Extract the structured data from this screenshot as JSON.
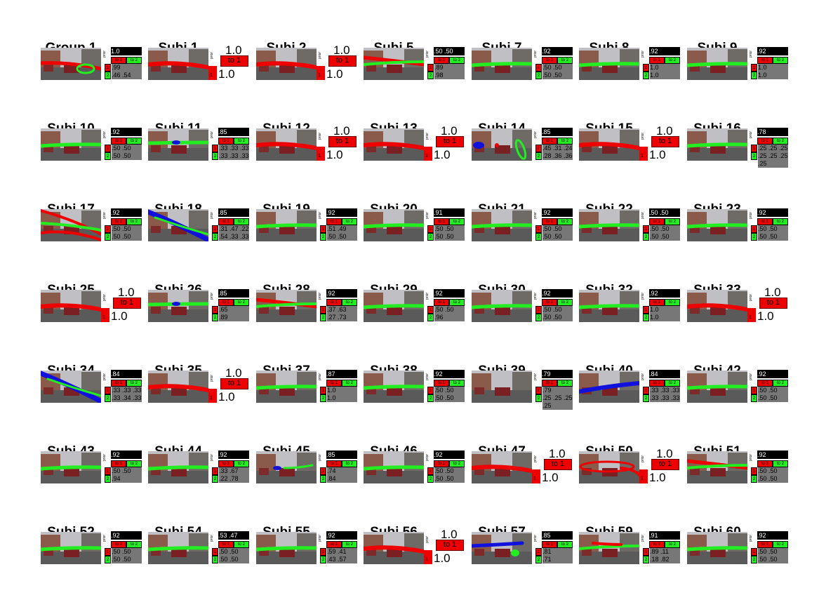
{
  "labels": {
    "prior": "prior",
    "to1": "to 1",
    "to2": "to 2",
    "one_big": "1.0",
    "c1": "1",
    "c2": "2"
  },
  "colors": {
    "red": "#ee0000",
    "green": "#22ee22",
    "blue": "#1111dd"
  },
  "panels": [
    {
      "title": "Group 1",
      "type": "g2",
      "prior": "1.0",
      "rows": [
        ".99",
        ".46 .54"
      ],
      "traj": "green-ellipse-red"
    },
    {
      "title": "Subj 1",
      "type": "big",
      "traj": "red"
    },
    {
      "title": "Subj 2",
      "type": "big",
      "traj": "red"
    },
    {
      "title": "Subj 5",
      "type": "g2",
      "prior": ".50 .50",
      "rows": [
        ".89",
        ".98"
      ],
      "traj": "red-green"
    },
    {
      "title": "Subj 7",
      "type": "g2",
      "prior": ".92",
      "rows": [
        ".50 .50",
        ".50 .50"
      ],
      "traj": "green"
    },
    {
      "title": "Subj 8",
      "type": "g2",
      "prior": ".92",
      "rows": [
        "1.0",
        "1.0"
      ],
      "traj": "green"
    },
    {
      "title": "Subj 9",
      "type": "g2",
      "prior": ".92",
      "rows": [
        "1.0",
        "1.0"
      ],
      "traj": "green"
    },
    {
      "title": "Subj 10",
      "type": "g2",
      "prior": ".92",
      "rows": [
        ".50 .50",
        ".50 .50"
      ],
      "traj": "green"
    },
    {
      "title": "Subj 11",
      "type": "g3",
      "prior": ".85",
      "rows": [
        ".33 .33 .33",
        ".33 .33 .33",
        ".33 .33 .33"
      ],
      "traj": "green-blue"
    },
    {
      "title": "Subj 12",
      "type": "big",
      "traj": "red"
    },
    {
      "title": "Subj 13",
      "type": "big",
      "traj": "red"
    },
    {
      "title": "Subj 14",
      "type": "g3",
      "prior": ".85",
      "rows": [
        ".45 .31 .24",
        ".28 .36 .36",
        ".33 .26 .41"
      ],
      "traj": "green-blue-red"
    },
    {
      "title": "Subj 15",
      "type": "big",
      "traj": "red"
    },
    {
      "title": "Subj 16",
      "type": "g5",
      "prior": ".78",
      "rows": [
        ".25 .25 .25 .25",
        ".25 .25 .25 .25",
        ".25 .25 .25 .25"
      ],
      "traj": "green"
    },
    {
      "title": "Subj 17",
      "type": "g2",
      "prior": ".92",
      "rows": [
        ".50 .50",
        ".50 .50"
      ],
      "traj": "red-green-wide"
    },
    {
      "title": "Subj 18",
      "type": "g3",
      "prior": ".85",
      "rows": [
        ".31 .47 .22",
        ".54 .33 .33"
      ],
      "traj": "blue-wide"
    },
    {
      "title": "Subj 19",
      "type": "g2",
      "prior": ".92",
      "rows": [
        ".51 .49",
        ".50 .50"
      ],
      "traj": "green"
    },
    {
      "title": "Subj 20",
      "type": "g2",
      "prior": ".91",
      "rows": [
        ".50 .50",
        ".50 .50"
      ],
      "traj": "green"
    },
    {
      "title": "Subj 21",
      "type": "g2",
      "prior": ".92",
      "rows": [
        ".50 .50",
        ".50 .50"
      ],
      "traj": "green"
    },
    {
      "title": "Subj 22",
      "type": "g2",
      "prior": ".50 .50",
      "rows": [
        ".50 .50",
        ".50 .50"
      ],
      "traj": "green"
    },
    {
      "title": "Subj 23",
      "type": "g2",
      "prior": ".92",
      "rows": [
        ".50 .50",
        ".50 .50"
      ],
      "traj": "green"
    },
    {
      "title": "Subj 25",
      "type": "big",
      "traj": "red"
    },
    {
      "title": "Subj 26",
      "type": "g3",
      "prior": ".85",
      "rows": [
        ".65",
        ".89",
        ".33 .58"
      ],
      "traj": "green-blue"
    },
    {
      "title": "Subj 28",
      "type": "g2",
      "prior": ".92",
      "rows": [
        ".37 .63",
        ".27 .73"
      ],
      "traj": "red-green"
    },
    {
      "title": "Subj 29",
      "type": "g2",
      "prior": ".92",
      "rows": [
        ".50 .50",
        ".96"
      ],
      "traj": "green"
    },
    {
      "title": "Subj 30",
      "type": "g2",
      "prior": ".92",
      "rows": [
        ".50 .50",
        ".50 .50"
      ],
      "traj": "green"
    },
    {
      "title": "Subj 32",
      "type": "g2",
      "prior": ".92",
      "rows": [
        "1.0",
        "1.0"
      ],
      "traj": "green"
    },
    {
      "title": "Subj 33",
      "type": "big",
      "traj": "red"
    },
    {
      "title": "Subj 34",
      "type": "g3",
      "prior": ".84",
      "rows": [
        ".33 .33 .33",
        ".33 .34 .33",
        ".33 .33 .33"
      ],
      "traj": "blue-wide"
    },
    {
      "title": "Subj 35",
      "type": "big",
      "traj": "red"
    },
    {
      "title": "Subj 37",
      "type": "g2",
      "prior": ".87",
      "rows": [
        "1.0",
        "1.0"
      ],
      "traj": "green"
    },
    {
      "title": "Subj 38",
      "type": "g2",
      "prior": ".92",
      "rows": [
        ".50 .50",
        ".50 .50"
      ],
      "traj": "green"
    },
    {
      "title": "Subj 39",
      "type": "g5",
      "prior": ".79",
      "rows": [
        ".79",
        ".25 .25 .25 .25",
        ".25 .25 .25 .25"
      ],
      "traj": "none"
    },
    {
      "title": "Subj 40",
      "type": "g3",
      "prior": ".84",
      "rows": [
        ".33 .33 .33",
        ".33 .33 .33",
        ".33 .33 .33"
      ],
      "traj": "blue"
    },
    {
      "title": "Subj 42",
      "type": "g2",
      "prior": ".92",
      "rows": [
        ".50 .50",
        ".50 .50"
      ],
      "traj": "green"
    },
    {
      "title": "Subj 43",
      "type": "g2",
      "prior": ".92",
      "rows": [
        ".50 .50",
        ".94"
      ],
      "traj": "green"
    },
    {
      "title": "Subj 44",
      "type": "g2",
      "prior": ".92",
      "rows": [
        ".33 .67",
        ".22 .78"
      ],
      "traj": "green"
    },
    {
      "title": "Subj 45",
      "type": "g3",
      "prior": ".85",
      "rows": [
        ".74",
        ".84",
        ".74"
      ],
      "traj": "blue-small"
    },
    {
      "title": "Subj 46",
      "type": "g2",
      "prior": ".92",
      "rows": [
        ".50 .50",
        ".50 .50"
      ],
      "traj": "green"
    },
    {
      "title": "Subj 47",
      "type": "big",
      "traj": "red"
    },
    {
      "title": "Subj 50",
      "type": "big",
      "traj": "red-ellipse"
    },
    {
      "title": "Subj 51",
      "type": "g2",
      "prior": ".92",
      "rows": [
        ".50 .50",
        ".50 .50"
      ],
      "traj": "red-green"
    },
    {
      "title": "Subj 52",
      "type": "g2",
      "prior": ".92",
      "rows": [
        ".50 .50",
        ".50 .50"
      ],
      "traj": "green"
    },
    {
      "title": "Subj 54",
      "type": "g2",
      "prior": ".53 .47",
      "rows": [
        ".50 .50",
        ".50 .50"
      ],
      "traj": "green"
    },
    {
      "title": "Subj 55",
      "type": "g2",
      "prior": ".92",
      "rows": [
        ".59 .41",
        ".43 .57"
      ],
      "traj": "green"
    },
    {
      "title": "Subj 56",
      "type": "big",
      "traj": "red"
    },
    {
      "title": "Subj 57",
      "type": "g3",
      "prior": ".85",
      "rows": [
        ".81",
        ".71",
        ".97"
      ],
      "traj": "blue-green"
    },
    {
      "title": "Subj 59",
      "type": "g2",
      "prior": ".91",
      "rows": [
        ".89 .11",
        ".18 .82"
      ],
      "traj": "green-red"
    },
    {
      "title": "Subj 60",
      "type": "g2",
      "prior": ".92",
      "rows": [
        ".50 .50",
        ".50 .50"
      ],
      "traj": "green"
    }
  ]
}
